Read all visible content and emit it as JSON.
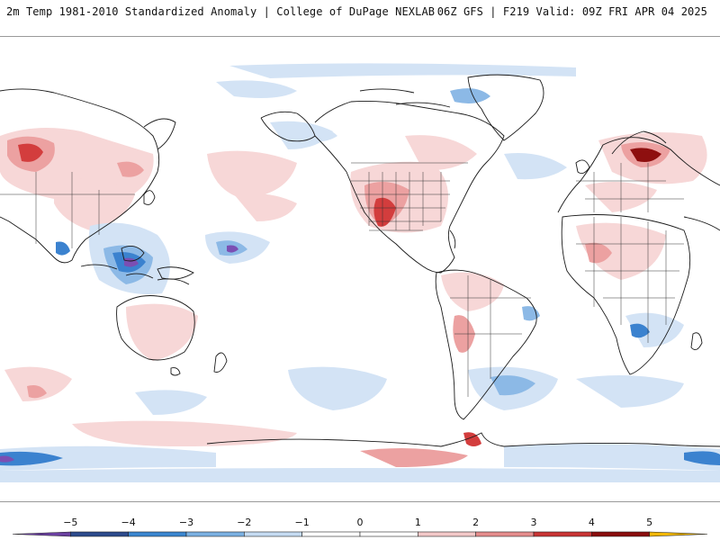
{
  "header": {
    "left_title": "2m Temp 1981-2010 Standardized Anomaly | College of DuPage NEXLAB",
    "right_title": "06Z GFS | F219 Valid: 09Z FRI APR 04 2025"
  },
  "colorbar": {
    "ticks": [
      "−5",
      "−4",
      "−3",
      "−2",
      "−1",
      "0",
      "1",
      "2",
      "3",
      "4",
      "5"
    ],
    "colors": [
      "#6a3fa0",
      "#2c4a8c",
      "#3a86d0",
      "#7ab0e2",
      "#c5dbf2",
      "#ffffff",
      "#ffffff",
      "#f3c8c8",
      "#e58c8c",
      "#c93434",
      "#8a0d0d",
      "#f2b705"
    ]
  },
  "map": {
    "projection": "Global, Pacific-centered",
    "colors": {
      "cold_light": "#d3e3f5",
      "cold_mid": "#8cb9e6",
      "cold_strong": "#3b82cf",
      "cold_extreme": "#7b4fb3",
      "warm_light": "#f7d7d7",
      "warm_mid": "#eca1a1",
      "warm_strong": "#d33d3d",
      "warm_extreme": "#8e0f0f",
      "border": "#1a1a1a"
    }
  }
}
